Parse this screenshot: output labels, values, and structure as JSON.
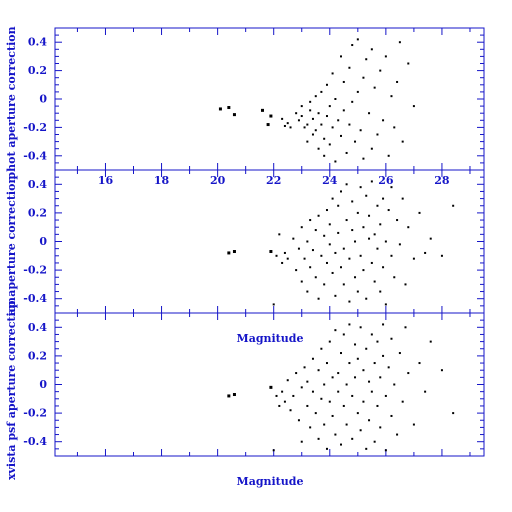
{
  "chart_data": [
    {
      "type": "scatter",
      "ylabel": "phot aperture correction",
      "xlabel": "",
      "xlim": [
        14.2,
        29.5
      ],
      "ylim": [
        -0.5,
        0.5
      ],
      "xticks_labeled": [
        16,
        18,
        20,
        22,
        24,
        26,
        28
      ],
      "xtick_labels": [
        "16",
        "18",
        "20",
        "22",
        "24",
        "26",
        "28"
      ],
      "yticks": [
        -0.4,
        -0.2,
        0,
        0.2,
        0.4
      ],
      "ytick_labels": [
        "-0.4",
        "-0.2",
        "0",
        "0.2",
        "0.4"
      ],
      "points": [
        [
          20.1,
          -0.07
        ],
        [
          20.4,
          -0.06
        ],
        [
          20.6,
          -0.11
        ],
        [
          21.6,
          -0.08
        ],
        [
          21.8,
          -0.18
        ],
        [
          21.9,
          -0.12
        ],
        [
          22.3,
          -0.14
        ],
        [
          22.4,
          -0.19
        ],
        [
          22.5,
          -0.17
        ],
        [
          22.6,
          -0.2
        ],
        [
          22.8,
          -0.1
        ],
        [
          22.9,
          -0.15
        ],
        [
          23.0,
          -0.12
        ],
        [
          23.0,
          -0.05
        ],
        [
          23.1,
          -0.2
        ],
        [
          23.2,
          -0.3
        ],
        [
          23.2,
          -0.18
        ],
        [
          23.3,
          -0.02
        ],
        [
          23.3,
          -0.08
        ],
        [
          23.4,
          -0.25
        ],
        [
          23.4,
          -0.14
        ],
        [
          23.5,
          0.02
        ],
        [
          23.5,
          -0.22
        ],
        [
          23.6,
          -0.35
        ],
        [
          23.6,
          -0.1
        ],
        [
          23.7,
          -0.18
        ],
        [
          23.7,
          0.05
        ],
        [
          23.8,
          -0.28
        ],
        [
          23.8,
          -0.4
        ],
        [
          23.9,
          -0.12
        ],
        [
          23.9,
          0.1
        ],
        [
          24.0,
          -0.05
        ],
        [
          24.0,
          -0.32
        ],
        [
          24.1,
          0.18
        ],
        [
          24.1,
          -0.2
        ],
        [
          24.2,
          -0.44
        ],
        [
          24.2,
          0.0
        ],
        [
          24.3,
          -0.15
        ],
        [
          24.4,
          0.3
        ],
        [
          24.4,
          -0.26
        ],
        [
          24.5,
          -0.08
        ],
        [
          24.5,
          0.12
        ],
        [
          24.6,
          -0.38
        ],
        [
          24.7,
          0.22
        ],
        [
          24.7,
          -0.18
        ],
        [
          24.8,
          0.38
        ],
        [
          24.8,
          -0.02
        ],
        [
          24.9,
          -0.3
        ],
        [
          25.0,
          0.05
        ],
        [
          25.0,
          0.42
        ],
        [
          25.1,
          -0.22
        ],
        [
          25.2,
          0.15
        ],
        [
          25.2,
          -0.42
        ],
        [
          25.3,
          0.28
        ],
        [
          25.4,
          -0.1
        ],
        [
          25.5,
          0.35
        ],
        [
          25.5,
          -0.35
        ],
        [
          25.6,
          0.08
        ],
        [
          25.7,
          -0.25
        ],
        [
          25.8,
          0.2
        ],
        [
          25.9,
          -0.15
        ],
        [
          26.0,
          0.3
        ],
        [
          26.1,
          -0.4
        ],
        [
          26.2,
          0.02
        ],
        [
          26.3,
          -0.2
        ],
        [
          26.4,
          0.12
        ],
        [
          26.5,
          0.4
        ],
        [
          26.6,
          -0.3
        ],
        [
          26.8,
          0.25
        ],
        [
          27.0,
          -0.05
        ]
      ]
    },
    {
      "type": "scatter",
      "ylabel": "ap aperture correction",
      "xlabel": "Magnitude",
      "xlim": [
        14.2,
        29.5
      ],
      "ylim": [
        -0.5,
        0.5
      ],
      "yticks": [
        -0.4,
        -0.2,
        0,
        0.2,
        0.4
      ],
      "ytick_labels": [
        "-0.4",
        "-0.2",
        "0",
        "0.2",
        "0.4"
      ],
      "points": [
        [
          20.4,
          -0.08
        ],
        [
          20.6,
          -0.07
        ],
        [
          21.9,
          -0.07
        ],
        [
          22.0,
          -0.44
        ],
        [
          22.1,
          -0.1
        ],
        [
          22.2,
          0.05
        ],
        [
          22.3,
          -0.15
        ],
        [
          22.4,
          -0.08
        ],
        [
          22.5,
          -0.12
        ],
        [
          22.7,
          0.02
        ],
        [
          22.8,
          -0.2
        ],
        [
          22.9,
          -0.05
        ],
        [
          23.0,
          0.1
        ],
        [
          23.0,
          -0.28
        ],
        [
          23.1,
          -0.12
        ],
        [
          23.2,
          0.0
        ],
        [
          23.2,
          -0.35
        ],
        [
          23.3,
          0.15
        ],
        [
          23.3,
          -0.18
        ],
        [
          23.4,
          -0.06
        ],
        [
          23.5,
          0.08
        ],
        [
          23.5,
          -0.25
        ],
        [
          23.6,
          -0.4
        ],
        [
          23.6,
          0.18
        ],
        [
          23.7,
          -0.1
        ],
        [
          23.8,
          0.04
        ],
        [
          23.8,
          -0.3
        ],
        [
          23.9,
          0.22
        ],
        [
          23.9,
          -0.15
        ],
        [
          24.0,
          -0.02
        ],
        [
          24.0,
          0.12
        ],
        [
          24.1,
          -0.22
        ],
        [
          24.1,
          0.3
        ],
        [
          24.2,
          -0.08
        ],
        [
          24.2,
          -0.38
        ],
        [
          24.3,
          0.06
        ],
        [
          24.3,
          0.25
        ],
        [
          24.4,
          -0.18
        ],
        [
          24.4,
          0.35
        ],
        [
          24.5,
          -0.05
        ],
        [
          24.5,
          -0.3
        ],
        [
          24.6,
          0.15
        ],
        [
          24.6,
          0.4
        ],
        [
          24.7,
          -0.12
        ],
        [
          24.7,
          -0.42
        ],
        [
          24.8,
          0.08
        ],
        [
          24.8,
          0.28
        ],
        [
          24.9,
          -0.25
        ],
        [
          24.9,
          0.0
        ],
        [
          25.0,
          0.2
        ],
        [
          25.0,
          -0.35
        ],
        [
          25.1,
          0.38
        ],
        [
          25.1,
          -0.1
        ],
        [
          25.2,
          0.1
        ],
        [
          25.2,
          -0.2
        ],
        [
          25.3,
          0.32
        ],
        [
          25.3,
          -0.4
        ],
        [
          25.4,
          0.02
        ],
        [
          25.4,
          0.18
        ],
        [
          25.5,
          -0.15
        ],
        [
          25.5,
          0.42
        ],
        [
          25.6,
          -0.28
        ],
        [
          25.6,
          0.05
        ],
        [
          25.7,
          0.25
        ],
        [
          25.7,
          -0.05
        ],
        [
          25.8,
          -0.35
        ],
        [
          25.8,
          0.12
        ],
        [
          25.9,
          0.3
        ],
        [
          25.9,
          -0.18
        ],
        [
          26.0,
          0.0
        ],
        [
          26.0,
          -0.44
        ],
        [
          26.1,
          0.22
        ],
        [
          26.2,
          -0.1
        ],
        [
          26.2,
          0.38
        ],
        [
          26.3,
          -0.25
        ],
        [
          26.4,
          0.15
        ],
        [
          26.5,
          -0.02
        ],
        [
          26.6,
          0.3
        ],
        [
          26.7,
          -0.3
        ],
        [
          26.8,
          0.1
        ],
        [
          27.0,
          -0.12
        ],
        [
          27.2,
          0.2
        ],
        [
          27.4,
          -0.08
        ],
        [
          27.6,
          0.02
        ],
        [
          28.0,
          -0.1
        ],
        [
          28.4,
          0.25
        ]
      ]
    },
    {
      "type": "scatter",
      "ylabel": "xvista psf aperture correction",
      "xlabel": "Magnitude",
      "xlim": [
        14.2,
        29.5
      ],
      "ylim": [
        -0.5,
        0.5
      ],
      "yticks": [
        -0.4,
        -0.2,
        0,
        0.2,
        0.4
      ],
      "ytick_labels": [
        "-0.4",
        "-0.2",
        "0",
        "0.2",
        "0.4"
      ],
      "points": [
        [
          20.4,
          -0.08
        ],
        [
          20.6,
          -0.07
        ],
        [
          21.9,
          -0.02
        ],
        [
          22.0,
          -0.46
        ],
        [
          22.1,
          -0.08
        ],
        [
          22.2,
          -0.15
        ],
        [
          22.3,
          -0.05
        ],
        [
          22.4,
          -0.12
        ],
        [
          22.5,
          0.03
        ],
        [
          22.6,
          -0.18
        ],
        [
          22.7,
          -0.08
        ],
        [
          22.8,
          0.08
        ],
        [
          22.9,
          -0.25
        ],
        [
          23.0,
          -0.02
        ],
        [
          23.0,
          -0.4
        ],
        [
          23.1,
          0.12
        ],
        [
          23.2,
          -0.15
        ],
        [
          23.2,
          0.02
        ],
        [
          23.3,
          -0.3
        ],
        [
          23.4,
          0.18
        ],
        [
          23.4,
          -0.05
        ],
        [
          23.5,
          -0.2
        ],
        [
          23.6,
          0.1
        ],
        [
          23.6,
          -0.38
        ],
        [
          23.7,
          0.25
        ],
        [
          23.7,
          -0.1
        ],
        [
          23.8,
          0.0
        ],
        [
          23.8,
          -0.28
        ],
        [
          23.9,
          0.15
        ],
        [
          23.9,
          -0.45
        ],
        [
          24.0,
          0.3
        ],
        [
          24.0,
          -0.12
        ],
        [
          24.1,
          0.05
        ],
        [
          24.1,
          -0.22
        ],
        [
          24.2,
          0.38
        ],
        [
          24.2,
          -0.35
        ],
        [
          24.3,
          0.08
        ],
        [
          24.3,
          -0.05
        ],
        [
          24.4,
          0.22
        ],
        [
          24.4,
          -0.42
        ],
        [
          24.5,
          -0.15
        ],
        [
          24.5,
          0.35
        ],
        [
          24.6,
          0.0
        ],
        [
          24.6,
          -0.28
        ],
        [
          24.7,
          0.15
        ],
        [
          24.7,
          0.42
        ],
        [
          24.8,
          -0.08
        ],
        [
          24.8,
          -0.38
        ],
        [
          24.9,
          0.28
        ],
        [
          24.9,
          0.05
        ],
        [
          25.0,
          -0.2
        ],
        [
          25.0,
          0.18
        ],
        [
          25.1,
          -0.32
        ],
        [
          25.1,
          0.4
        ],
        [
          25.2,
          0.1
        ],
        [
          25.2,
          -0.12
        ],
        [
          25.3,
          -0.45
        ],
        [
          25.3,
          0.25
        ],
        [
          25.4,
          0.02
        ],
        [
          25.4,
          -0.25
        ],
        [
          25.5,
          0.35
        ],
        [
          25.5,
          -0.05
        ],
        [
          25.6,
          0.15
        ],
        [
          25.6,
          -0.4
        ],
        [
          25.7,
          0.3
        ],
        [
          25.7,
          -0.15
        ],
        [
          25.8,
          0.05
        ],
        [
          25.8,
          -0.3
        ],
        [
          25.9,
          0.42
        ],
        [
          25.9,
          0.2
        ],
        [
          26.0,
          -0.08
        ],
        [
          26.0,
          -0.46
        ],
        [
          26.1,
          0.12
        ],
        [
          26.2,
          -0.22
        ],
        [
          26.2,
          0.32
        ],
        [
          26.3,
          0.0
        ],
        [
          26.4,
          -0.35
        ],
        [
          26.5,
          0.22
        ],
        [
          26.6,
          -0.12
        ],
        [
          26.7,
          0.4
        ],
        [
          26.8,
          0.08
        ],
        [
          27.0,
          -0.28
        ],
        [
          27.2,
          0.15
        ],
        [
          27.4,
          -0.05
        ],
        [
          27.6,
          0.3
        ],
        [
          28.0,
          0.1
        ],
        [
          28.4,
          -0.2
        ]
      ]
    }
  ]
}
